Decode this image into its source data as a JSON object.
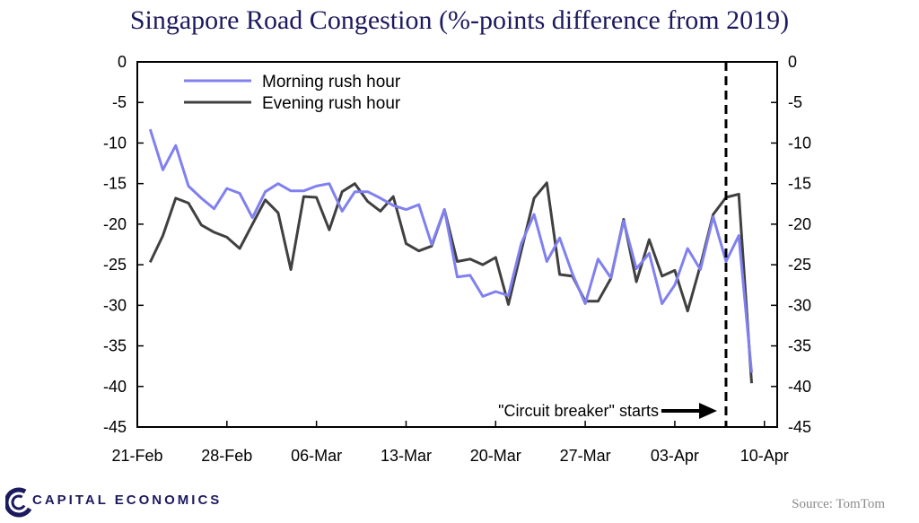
{
  "chart_data": {
    "type": "line",
    "title": "Singapore Road Congestion (%-points difference from 2019)",
    "ylim": [
      -45,
      0
    ],
    "yticks": [
      0,
      -5,
      -10,
      -15,
      -20,
      -25,
      -30,
      -35,
      -40,
      -45
    ],
    "ytick_labels": [
      "0",
      "-5",
      "-10",
      "-15",
      "-20",
      "-25",
      "-30",
      "-35",
      "-40",
      "-45"
    ],
    "x_start_day": 0,
    "x_end_day": 50,
    "xticks": [
      0,
      7,
      14,
      21,
      28,
      35,
      42,
      49
    ],
    "xtick_labels": [
      "21-Feb",
      "28-Feb",
      "06-Mar",
      "13-Mar",
      "20-Mar",
      "27-Mar",
      "03-Apr",
      "10-Apr"
    ],
    "series": [
      {
        "name": "Morning rush hour",
        "color": "#8080f0",
        "start_day": 1,
        "values": [
          -8.3,
          -13.3,
          -10.3,
          -15.3,
          -16.8,
          -18.1,
          -15.6,
          -16.2,
          -19.2,
          -16.0,
          -15.0,
          -15.9,
          -15.9,
          -15.3,
          -15.0,
          -18.4,
          -16.0,
          -16.0,
          -16.8,
          -17.7,
          -18.2,
          -17.6,
          -22.5,
          -18.2,
          -26.5,
          -26.3,
          -28.9,
          -28.3,
          -28.8,
          -22.4,
          -18.8,
          -24.6,
          -21.7,
          -26.1,
          -29.8,
          -24.3,
          -26.6,
          -19.6,
          -25.5,
          -23.6,
          -29.8,
          -27.5,
          -23.0,
          -25.6,
          -19.1,
          -24.6,
          -21.4,
          -38.3
        ]
      },
      {
        "name": "Evening rush hour",
        "color": "#404040",
        "start_day": 1,
        "values": [
          -24.7,
          -21.4,
          -16.8,
          -17.4,
          -20.1,
          -21.0,
          -21.6,
          -23.0,
          -20.0,
          -17.0,
          -18.6,
          -25.6,
          -16.6,
          -16.7,
          -20.7,
          -16.0,
          -15.0,
          -17.2,
          -18.4,
          -16.6,
          -22.4,
          -23.3,
          -22.7,
          -18.2,
          -24.6,
          -24.3,
          -25.0,
          -24.1,
          -29.9,
          -23.3,
          -16.8,
          -14.9,
          -26.2,
          -26.4,
          -29.5,
          -29.5,
          -26.7,
          -19.4,
          -27.1,
          -21.9,
          -26.4,
          -25.7,
          -30.7,
          -25.1,
          -18.8,
          -16.7,
          -16.3,
          -39.6
        ]
      }
    ],
    "event_day": 46,
    "annotation": "\"Circuit breaker\" starts",
    "legend_position": "top-left"
  },
  "branding": {
    "company": "CAPITAL ECONOMICS",
    "source": "Source: TomTom"
  }
}
